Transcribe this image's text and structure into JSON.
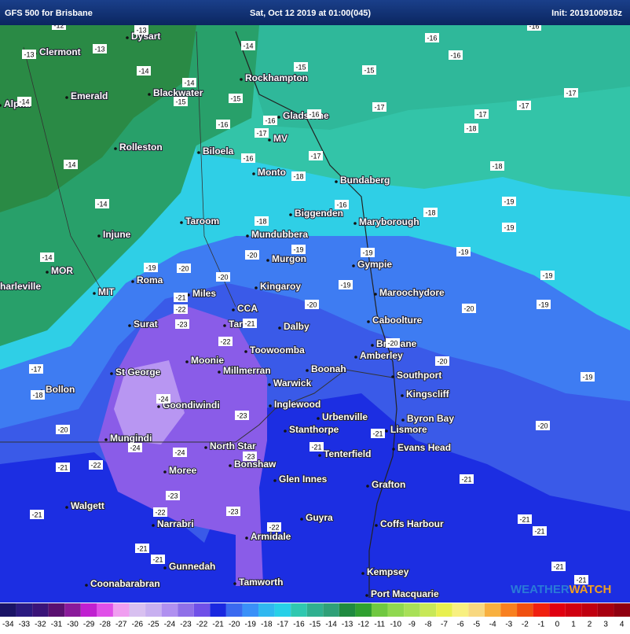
{
  "header": {
    "title": "GFS 500 for Brisbane",
    "valid_time": "Sat, Oct 12 2019 at 01:00(045)",
    "init": "Init: 2019100918z"
  },
  "places": [
    "Dysart",
    "Clermont",
    "Rockhampton",
    "Alpha",
    "Emerald",
    "Blackwater",
    "Gladstone",
    "MV",
    "Biloela",
    "Rolleston",
    "Monto",
    "Bundaberg",
    "Biggenden",
    "Maryborough",
    "Taroom",
    "Mundubbera",
    "Injune",
    "Murgon",
    "Gympie",
    "MOR",
    "Roma",
    "Miles",
    "Kingaroy",
    "Maroochydore",
    "harleville",
    "MIT",
    "CCA",
    "Surat",
    "Tara",
    "Dalby",
    "Caboolture",
    "Brisbane",
    "Toowoomba",
    "Amberley",
    "Moonie",
    "Millmerran",
    "Boonah",
    "Southport",
    "St George",
    "Warwick",
    "Kingscliff",
    "Bollon",
    "Inglewood",
    "Goondiwindi",
    "Urbenville",
    "Byron Bay",
    "Lismore",
    "Stanthorpe",
    "Mungindi",
    "North Star",
    "Tenterfield",
    "Evans Head",
    "Bonshaw",
    "Moree",
    "Glen Innes",
    "Grafton",
    "Walgett",
    "Narrabri",
    "Guyra",
    "Coffs Harbour",
    "Armidale",
    "Gunnedah",
    "Kempsey",
    "Coonabarabran",
    "Tamworth",
    "Port Macquarie"
  ],
  "contours": [
    -12,
    -13,
    -13,
    -13,
    -14,
    -16,
    -16,
    -16,
    -14,
    -14,
    -15,
    -15,
    -15,
    -15,
    -14,
    -17,
    -17,
    -17,
    -17,
    -16,
    -16,
    -16,
    -18,
    -17,
    -17,
    -16,
    -14,
    -18,
    -18,
    -14,
    -16,
    -19,
    -18,
    -18,
    -19,
    -14,
    -19,
    -20,
    -20,
    -19,
    -19,
    -19,
    -19,
    -20,
    -19,
    -21,
    -20,
    -22,
    -20,
    -19,
    -23,
    -21,
    -20,
    -22,
    -20,
    -17,
    -18,
    -19,
    -24,
    -23,
    -20,
    -20,
    -21,
    -24,
    -24,
    -21,
    -23,
    -21,
    -22,
    -21,
    -23,
    -23,
    -21,
    -22,
    -21,
    -21,
    -22,
    -21,
    -21,
    -21,
    -21
  ],
  "watermark": [
    "WEATHER",
    "WATCH"
  ],
  "scale": {
    "values": [
      -34,
      -33,
      -32,
      -31,
      -30,
      -29,
      -28,
      -27,
      -26,
      -25,
      -24,
      -23,
      -22,
      -21,
      -20,
      -19,
      -18,
      -17,
      -16,
      -15,
      -14,
      -13,
      -12,
      -11,
      -10,
      -9,
      -8,
      -7,
      -6,
      -5,
      -4,
      -3,
      -2,
      -1,
      0,
      1,
      2,
      3,
      4
    ],
    "colors": [
      "#1a1466",
      "#2a1a80",
      "#3a1478",
      "#5a1070",
      "#8a1a9a",
      "#c020d0",
      "#e050e8",
      "#f09ef0",
      "#d8c0f0",
      "#c8b0f0",
      "#b090f0",
      "#9070e8",
      "#7050e8",
      "#1a28e0",
      "#3a6af0",
      "#3a90f8",
      "#30b8f0",
      "#28d0e8",
      "#30c8b0",
      "#30b090",
      "#30a078",
      "#208a40",
      "#30a030",
      "#70c840",
      "#90d850",
      "#a8e058",
      "#c8e858",
      "#e8f050",
      "#f8f080",
      "#f8d880",
      "#f8b040",
      "#f88020",
      "#f05010",
      "#f02010",
      "#e00010",
      "#d00010",
      "#c00010",
      "#a80010",
      "#900010"
    ]
  }
}
